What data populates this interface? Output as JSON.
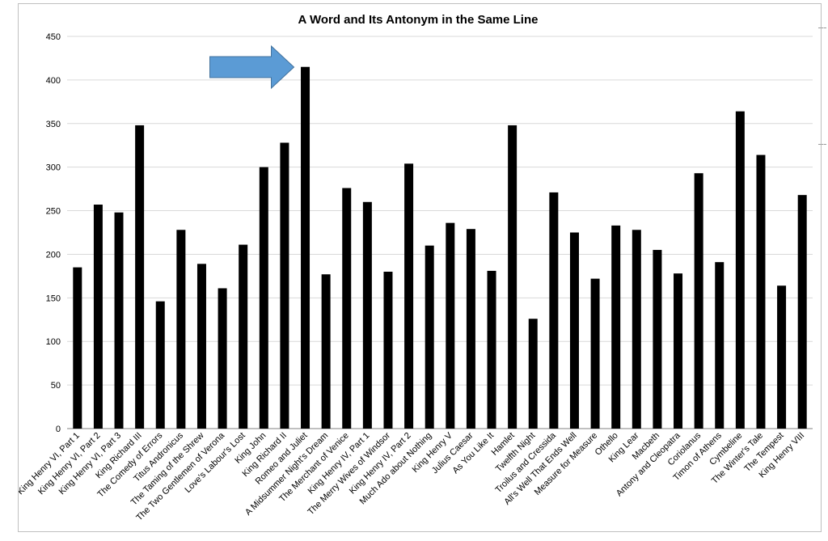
{
  "chart_data": {
    "type": "bar",
    "title": "A Word and Its Antonym in the Same Line",
    "xlabel": "",
    "ylabel": "",
    "ylim": [
      0,
      450
    ],
    "yticks": [
      0,
      50,
      100,
      150,
      200,
      250,
      300,
      350,
      400,
      450
    ],
    "grid": true,
    "legend": "none",
    "bar_color": "#000000",
    "arrow_color": "#5b9bd5",
    "highlight_category": "Romeo and Juliet",
    "categories": [
      "King Henry VI, Part 1",
      "King Henry VI, Part 2",
      "King Henry VI, Part 3",
      "King Richard III",
      "The Comedy of Errors",
      "Titus Andronicus",
      "The Taming of the Shrew",
      "The Two Gentlemen of Verona",
      "Love's Labour's Lost",
      "King John",
      "King Richard II",
      "Romeo and Juliet",
      "A Midsummer Night's Dream",
      "The Merchant of Venice",
      "King Henry IV, Part 1",
      "The Merry Wives of Windsor",
      "King Henry IV, Part 2",
      "Much Ado about Nothing",
      "King Henry V",
      "Julius Caesar",
      "As You Like It",
      "Hamlet",
      "Twelfth Night",
      "Troilus and Cressida",
      "All's Well That Ends Well",
      "Measure for Measure",
      "Othello",
      "King Lear",
      "Macbeth",
      "Antony and Cleopatra",
      "Coriolanus",
      "Timon of Athens",
      "Cymbeline",
      "The Winter's Tale",
      "The Tempest",
      "King Henry VIII"
    ],
    "values": [
      185,
      257,
      248,
      348,
      146,
      228,
      189,
      161,
      211,
      300,
      328,
      415,
      177,
      276,
      260,
      180,
      304,
      210,
      236,
      229,
      181,
      348,
      126,
      271,
      225,
      172,
      233,
      228,
      205,
      178,
      293,
      191,
      364,
      314,
      164,
      268
    ]
  }
}
